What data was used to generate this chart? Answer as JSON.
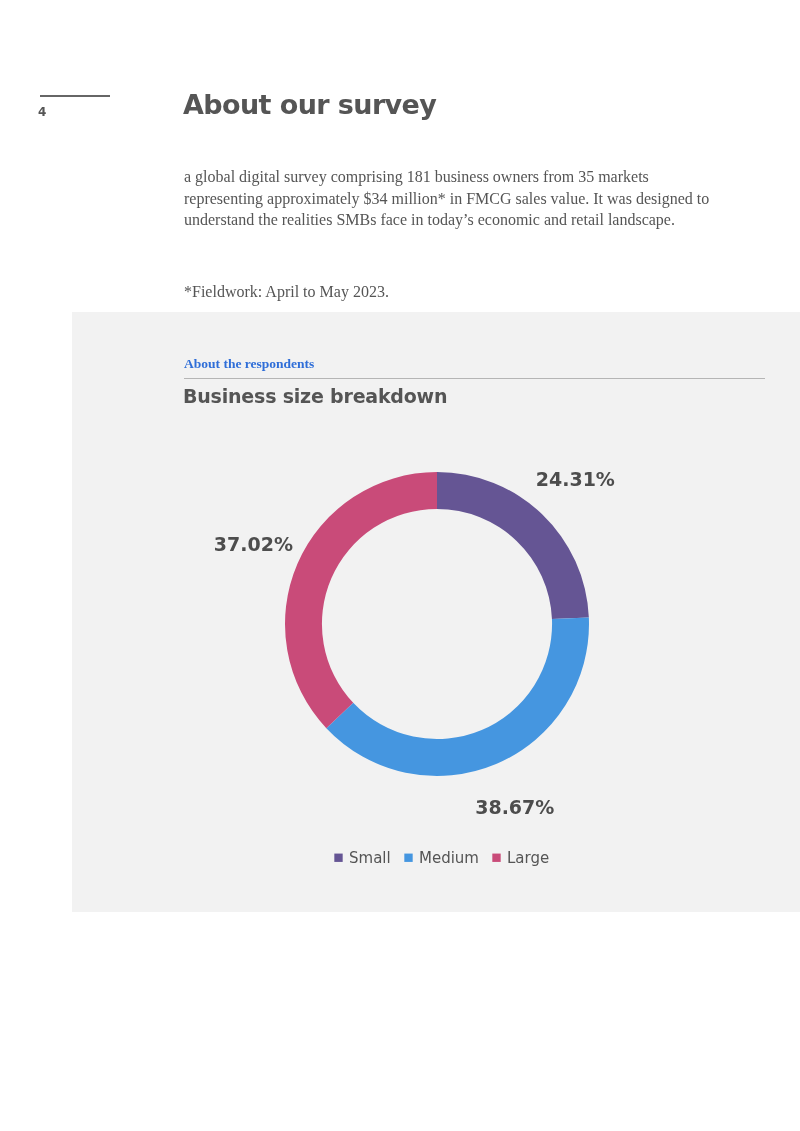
{
  "chart_data": {
    "type": "donut",
    "title": "Business size breakdown",
    "subtitle": "About the respondents",
    "categories": [
      "Small",
      "Medium",
      "Large"
    ],
    "values": [
      24.31,
      38.67,
      37.02
    ],
    "colors": [
      "#655594",
      "#4596e0",
      "#c94b79"
    ],
    "value_labels": [
      "24.31%",
      "38.67%",
      "37.02%"
    ],
    "legend": "bottom",
    "annotations": [
      "4",
      "About our survey",
      "a global digital survey comprising 181 business owners from 35 markets representing approximately $34 million* in FMCG sales value. It was designed to understand the realities SMBs face in today’s economic and retail landscape.",
      "*Fieldwork: April to May 2023."
    ]
  }
}
